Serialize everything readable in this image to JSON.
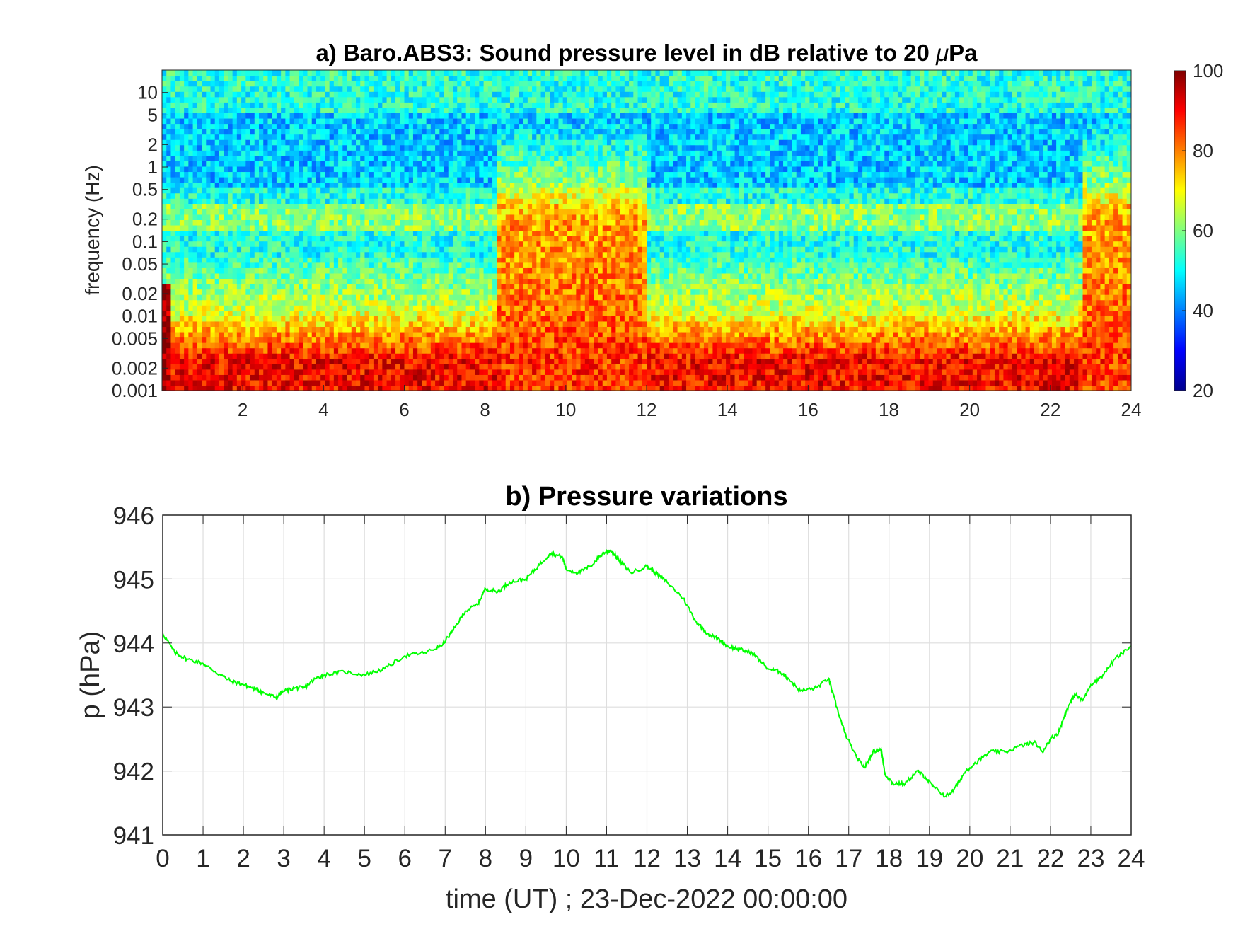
{
  "chart_data": [
    {
      "type": "heatmap",
      "title_prefix": "a) Baro.ABS3: Sound pressure level in dB relative to 20 ",
      "title_mu": "μ",
      "title_suffix": "Pa",
      "ylabel": "frequency (Hz)",
      "xlabel": "",
      "x_ticks": [
        "2",
        "4",
        "6",
        "8",
        "10",
        "12",
        "14",
        "16",
        "18",
        "20",
        "22",
        "24"
      ],
      "xlim": [
        0,
        24
      ],
      "y_ticks": [
        "0.001",
        "0.002",
        "0.005",
        "0.01",
        "0.02",
        "0.05",
        "0.1",
        "0.2",
        "0.5",
        "1",
        "2",
        "5",
        "10"
      ],
      "ylim": [
        0.001,
        20
      ],
      "y_scale": "log",
      "colorbar": {
        "ticks": [
          "20",
          "40",
          "60",
          "80",
          "100"
        ],
        "range": [
          20,
          100
        ],
        "colormap": "jet"
      },
      "features": [
        {
          "description": "broadband energetic episode",
          "x_range": [
            8.3,
            12.0
          ],
          "level_db": 85
        },
        {
          "description": "broadband energetic episode",
          "x_range": [
            22.8,
            24.0
          ],
          "level_db": 85
        },
        {
          "description": "narrow band near 0.15-0.3 Hz",
          "y_range": [
            0.15,
            0.3
          ],
          "level_db": 65
        }
      ]
    },
    {
      "type": "line",
      "title": "b) Pressure variations",
      "xlabel": "time (UT) ; 23-Dec-2022 00:00:00",
      "ylabel": "p (hPa)",
      "xlim": [
        0,
        24
      ],
      "ylim": [
        941,
        946
      ],
      "x_ticks": [
        "0",
        "1",
        "2",
        "3",
        "4",
        "5",
        "6",
        "7",
        "8",
        "9",
        "10",
        "11",
        "12",
        "13",
        "14",
        "15",
        "16",
        "17",
        "18",
        "19",
        "20",
        "21",
        "22",
        "23",
        "24"
      ],
      "y_ticks": [
        "941",
        "942",
        "943",
        "944",
        "945",
        "946"
      ],
      "grid": true,
      "series": [
        {
          "color": "#00ff00",
          "x": [
            0,
            0.3,
            0.6,
            1.0,
            1.3,
            1.7,
            2.0,
            2.3,
            2.5,
            2.8,
            3.0,
            3.3,
            3.5,
            3.8,
            4.0,
            4.5,
            5.0,
            5.5,
            6.0,
            6.5,
            6.9,
            7.2,
            7.5,
            7.8,
            8.0,
            8.3,
            8.6,
            9.0,
            9.3,
            9.6,
            9.9,
            10.0,
            10.3,
            10.6,
            10.9,
            11.1,
            11.3,
            11.6,
            12.0,
            12.2,
            12.5,
            12.9,
            13.2,
            13.5,
            13.8,
            14.0,
            14.3,
            14.6,
            15.0,
            15.3,
            15.5,
            15.8,
            16.2,
            16.5,
            16.7,
            16.9,
            17.2,
            17.4,
            17.6,
            17.8,
            17.9,
            18.1,
            18.4,
            18.7,
            18.9,
            19.1,
            19.4,
            19.6,
            19.9,
            20.1,
            20.5,
            20.9,
            21.3,
            21.6,
            21.8,
            22.0,
            22.2,
            22.4,
            22.6,
            22.8,
            23.0,
            23.3,
            23.6,
            24.0
          ],
          "y": [
            944.15,
            943.85,
            943.75,
            943.68,
            943.55,
            943.4,
            943.35,
            943.28,
            943.22,
            943.15,
            943.25,
            943.3,
            943.3,
            943.45,
            943.5,
            943.55,
            943.5,
            943.6,
            943.8,
            943.85,
            943.95,
            944.2,
            944.5,
            944.6,
            944.85,
            944.8,
            944.95,
            945.0,
            945.2,
            945.4,
            945.35,
            945.15,
            945.1,
            945.2,
            945.4,
            945.45,
            945.3,
            945.1,
            945.2,
            945.1,
            944.95,
            944.7,
            944.35,
            944.15,
            944.05,
            943.95,
            943.9,
            943.85,
            943.6,
            943.55,
            943.45,
            943.25,
            943.3,
            943.45,
            943.0,
            942.6,
            942.2,
            942.05,
            942.3,
            942.35,
            941.95,
            941.8,
            941.8,
            942.0,
            941.9,
            941.75,
            941.6,
            941.7,
            942.0,
            942.1,
            942.3,
            942.3,
            942.4,
            942.45,
            942.3,
            942.5,
            942.6,
            942.95,
            943.2,
            943.1,
            943.35,
            943.5,
            943.75,
            943.95
          ]
        }
      ]
    }
  ]
}
